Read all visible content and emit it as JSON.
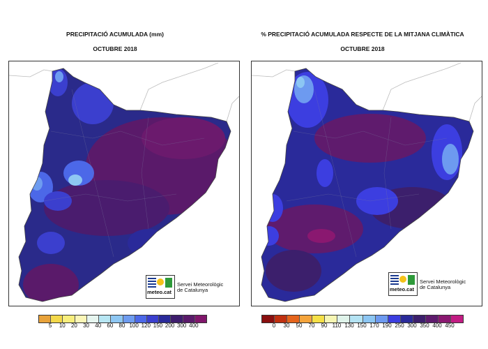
{
  "maps": [
    {
      "title": "PRECIPITACIÓ ACUMULADA (mm)",
      "subtitle": "OCTUBRE 2018",
      "legend": {
        "labels": [
          "5",
          "10",
          "20",
          "30",
          "40",
          "60",
          "80",
          "100",
          "120",
          "150",
          "200",
          "300",
          "400"
        ],
        "colors": [
          "#e8a23a",
          "#f3d84a",
          "#f8ee7c",
          "#fbf6b7",
          "#e6f5ef",
          "#b7e6f3",
          "#8ec7f3",
          "#6e9cf0",
          "#4c68e8",
          "#3b3fce",
          "#2a2a9a",
          "#3e1d6d",
          "#5a1a6a",
          "#80166b"
        ]
      }
    },
    {
      "title": "% PRECIPITACIÓ ACUMULADA RESPECTE DE LA MITJANA CLIMÀTICA",
      "subtitle": "OCTUBRE 2018",
      "legend": {
        "labels": [
          "0",
          "30",
          "50",
          "70",
          "90",
          "110",
          "130",
          "150",
          "170",
          "190",
          "250",
          "300",
          "350",
          "400",
          "450"
        ],
        "colors": [
          "#8a0f0f",
          "#c03010",
          "#e5641c",
          "#f4a43c",
          "#f5e047",
          "#f6f6b3",
          "#dff3ea",
          "#b4e3f3",
          "#8cc6f3",
          "#6d9af0",
          "#3c3ee0",
          "#2a2a9a",
          "#3c1f6c",
          "#5f1b6d",
          "#8a1870",
          "#c21c83"
        ]
      }
    }
  ],
  "logo": {
    "brand": "meteo.cat",
    "line1": "Servei Meteorològic",
    "line2": "de Catalunya"
  }
}
